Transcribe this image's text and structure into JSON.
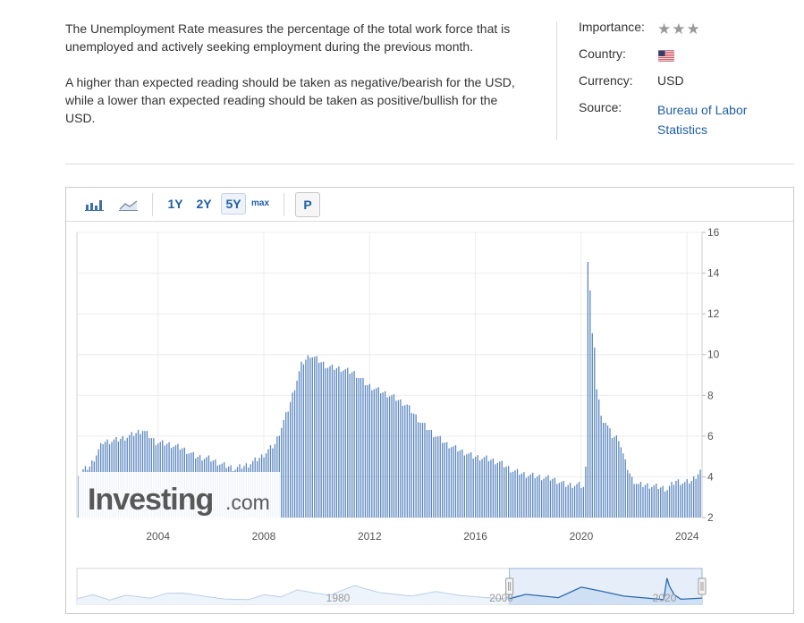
{
  "description": {
    "paragraph1": "The Unemployment Rate measures the percentage of the total work force that is unemployed and actively seeking employment during the previous month.",
    "paragraph2": "A higher than expected reading should be taken as negative/bearish for the USD, while a lower than expected reading should be taken as positive/bullish for the USD."
  },
  "meta": {
    "importance_label": "Importance:",
    "importance_stars": 3,
    "country_label": "Country:",
    "country_flag": "us-flag-icon",
    "currency_label": "Currency:",
    "currency_value": "USD",
    "source_label": "Source:",
    "source_value": "Bureau of Labor Statistics"
  },
  "toolbar": {
    "bar_chart_icon": "bar-chart-icon",
    "area_chart_icon": "area-chart-icon",
    "ranges": [
      "1Y",
      "2Y",
      "5Y",
      "max"
    ],
    "active_range": "5Y",
    "print_label": "P"
  },
  "watermark": {
    "brand": "Investing",
    "suffix": ".com"
  },
  "colors": {
    "bar": "#5b86c0",
    "link": "#1f5fa6",
    "navigator_fill": "#cfe0f4",
    "navigator_line": "#2a6bb0"
  },
  "chart_data": {
    "type": "bar",
    "title": "",
    "xlabel": "",
    "ylabel": "",
    "ylim": [
      2,
      16
    ],
    "y_ticks": [
      2,
      4,
      6,
      8,
      10,
      12,
      14,
      16
    ],
    "x_ticks": [
      "2004",
      "2008",
      "2012",
      "2016",
      "2020",
      "2024"
    ],
    "xlim": [
      "2001-01",
      "2024-07"
    ],
    "grid": true,
    "series": [
      {
        "frequency": "monthly",
        "start": "2001-01",
        "anchors": [
          [
            "2001-01",
            4.2
          ],
          [
            "2001-06",
            4.5
          ],
          [
            "2001-12",
            5.7
          ],
          [
            "2002-06",
            5.8
          ],
          [
            "2002-12",
            6.0
          ],
          [
            "2003-06",
            6.3
          ],
          [
            "2003-12",
            5.7
          ],
          [
            "2004-06",
            5.6
          ],
          [
            "2004-12",
            5.4
          ],
          [
            "2005-06",
            5.0
          ],
          [
            "2005-12",
            4.9
          ],
          [
            "2006-06",
            4.6
          ],
          [
            "2006-12",
            4.4
          ],
          [
            "2007-06",
            4.6
          ],
          [
            "2007-12",
            5.0
          ],
          [
            "2008-06",
            5.6
          ],
          [
            "2008-12",
            7.3
          ],
          [
            "2009-06",
            9.5
          ],
          [
            "2009-10",
            10.0
          ],
          [
            "2010-06",
            9.4
          ],
          [
            "2010-12",
            9.3
          ],
          [
            "2011-06",
            9.1
          ],
          [
            "2011-12",
            8.5
          ],
          [
            "2012-06",
            8.2
          ],
          [
            "2012-12",
            7.9
          ],
          [
            "2013-06",
            7.5
          ],
          [
            "2013-12",
            6.7
          ],
          [
            "2014-06",
            6.1
          ],
          [
            "2014-12",
            5.6
          ],
          [
            "2015-06",
            5.3
          ],
          [
            "2015-12",
            5.0
          ],
          [
            "2016-06",
            4.9
          ],
          [
            "2016-12",
            4.7
          ],
          [
            "2017-06",
            4.3
          ],
          [
            "2017-12",
            4.1
          ],
          [
            "2018-06",
            4.0
          ],
          [
            "2018-12",
            3.9
          ],
          [
            "2019-06",
            3.6
          ],
          [
            "2019-12",
            3.6
          ],
          [
            "2020-02",
            3.5
          ],
          [
            "2020-03",
            4.4
          ],
          [
            "2020-04",
            14.7
          ],
          [
            "2020-05",
            13.2
          ],
          [
            "2020-06",
            11.0
          ],
          [
            "2020-07",
            10.2
          ],
          [
            "2020-08",
            8.4
          ],
          [
            "2020-09",
            7.8
          ],
          [
            "2020-10",
            6.9
          ],
          [
            "2020-12",
            6.7
          ],
          [
            "2021-03",
            6.0
          ],
          [
            "2021-06",
            5.9
          ],
          [
            "2021-09",
            4.7
          ],
          [
            "2021-12",
            3.9
          ],
          [
            "2022-03",
            3.6
          ],
          [
            "2022-06",
            3.6
          ],
          [
            "2022-12",
            3.5
          ],
          [
            "2023-04",
            3.4
          ],
          [
            "2023-08",
            3.8
          ],
          [
            "2023-12",
            3.7
          ],
          [
            "2024-03",
            3.8
          ],
          [
            "2024-07",
            4.3
          ]
        ]
      }
    ],
    "navigator": {
      "x_ticks": [
        "1980",
        "2000",
        "2020"
      ],
      "selected_range": [
        "2001-01",
        "2024-07"
      ]
    }
  }
}
